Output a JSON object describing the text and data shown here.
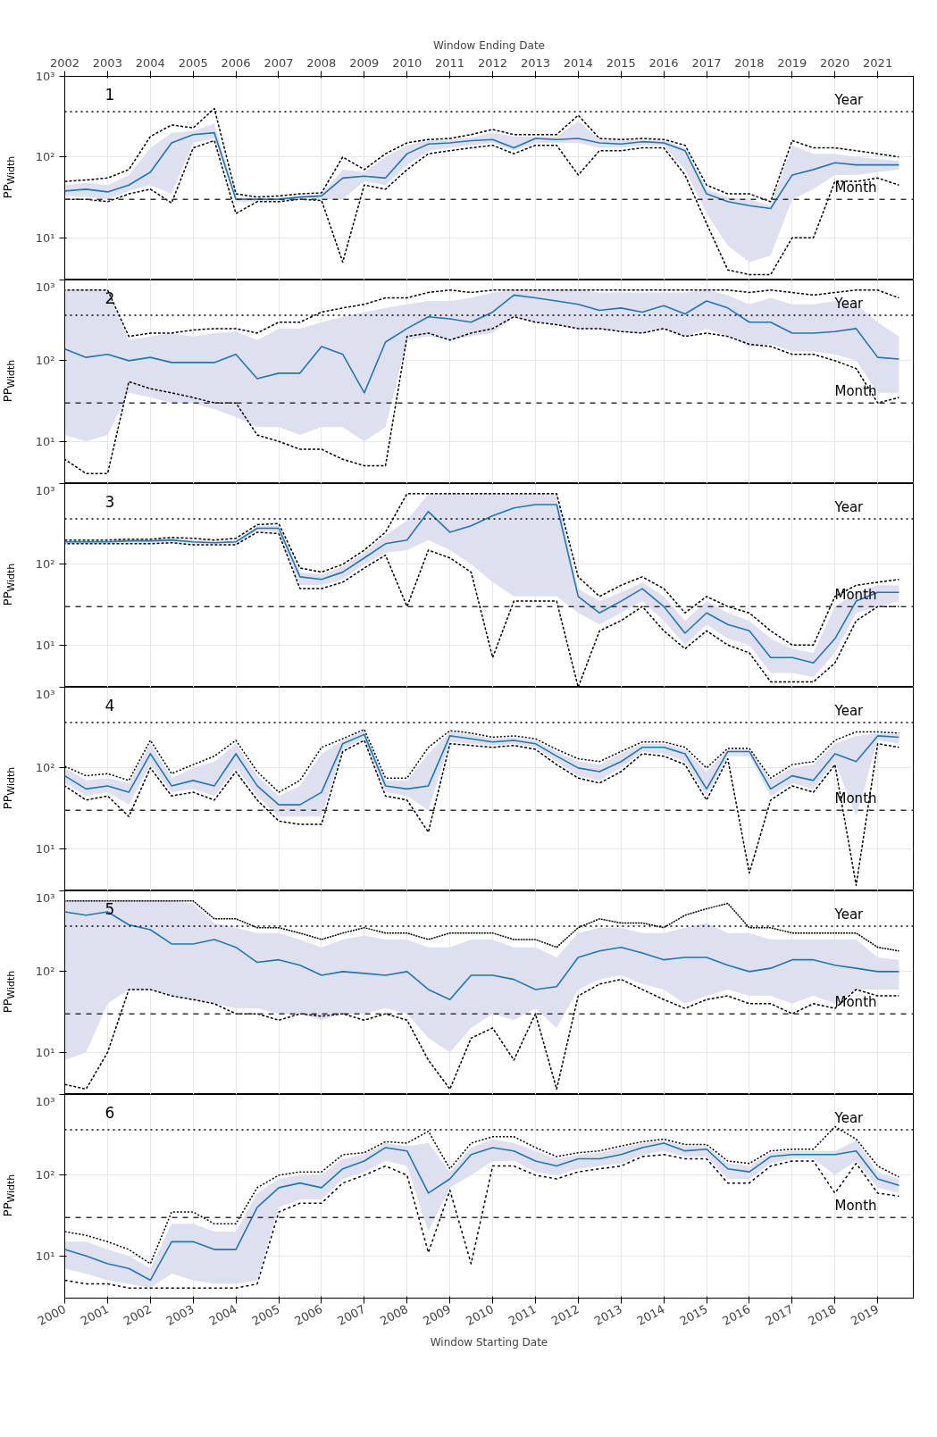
{
  "chart_data": [
    {
      "type": "line",
      "annotations": [
        "1"
      ],
      "x2label": "Window Ending Date",
      "ylabel": "PP$_{Width}$",
      "log": true,
      "grid": true,
      "tick_labels": "y",
      "ylim": [
        3,
        1000
      ],
      "yticks": [
        {
          "value": 10,
          "label": "10¹"
        },
        {
          "value": 100,
          "label": "10²"
        },
        {
          "value": 1000,
          "label": "10³"
        }
      ],
      "xlim": [
        "2000-01-01",
        "2019-11-01"
      ],
      "xticks": [
        "2000",
        "2001",
        "2002",
        "2003",
        "2004",
        "2005",
        "2006",
        "2007",
        "2008",
        "2009",
        "2010",
        "2011",
        "2012",
        "2013",
        "2014",
        "2015",
        "2016",
        "2017",
        "2018",
        "2019"
      ],
      "x2lim": [
        "2002-01-01",
        "2021-11-01"
      ],
      "x2ticks": [
        "2002",
        "2003",
        "2004",
        "2005",
        "2006",
        "2007",
        "2008",
        "2009",
        "2010",
        "2011",
        "2012",
        "2013",
        "2014",
        "2015",
        "2016",
        "2017",
        "2018",
        "2019",
        "2020",
        "2021"
      ],
      "ref_lines": [
        {
          "axis": "y",
          "value": 365,
          "label": "Year",
          "line_style": "dotted",
          "color": "#000000"
        },
        {
          "axis": "y",
          "value": 30,
          "label": "Month",
          "line_style": "dashed",
          "color": "#333333"
        }
      ],
      "x": [
        "2000-01",
        "2000-07",
        "2001-01",
        "2001-07",
        "2002-01",
        "2002-07",
        "2003-01",
        "2003-07",
        "2004-01",
        "2004-07",
        "2005-01",
        "2005-07",
        "2006-01",
        "2006-07",
        "2007-01",
        "2007-07",
        "2008-01",
        "2008-07",
        "2009-01",
        "2009-07",
        "2010-01",
        "2010-07",
        "2011-01",
        "2011-07",
        "2012-01",
        "2012-07",
        "2013-01",
        "2013-07",
        "2014-01",
        "2014-07",
        "2015-01",
        "2015-07",
        "2016-01",
        "2016-07",
        "2017-01",
        "2017-07",
        "2018-01",
        "2018-07",
        "2019-01",
        "2019-07"
      ],
      "series": [
        {
          "color": "#1f77b4",
          "line_style": "solid",
          "values": [
            38,
            40,
            37,
            45,
            65,
            150,
            190,
            200,
            30,
            30,
            30,
            32,
            33,
            55,
            58,
            55,
            110,
            145,
            150,
            160,
            165,
            130,
            170,
            165,
            170,
            150,
            145,
            155,
            150,
            120,
            35,
            28,
            25,
            23,
            60,
            70,
            85,
            80,
            80,
            80
          ],
          "lower": [
            33,
            32,
            30,
            38,
            45,
            35,
            150,
            170,
            28,
            28,
            29,
            30,
            30,
            30,
            50,
            45,
            80,
            120,
            130,
            140,
            150,
            120,
            150,
            150,
            150,
            130,
            130,
            140,
            140,
            70,
            20,
            8,
            5,
            6,
            30,
            40,
            60,
            60,
            65,
            70
          ],
          "upper": [
            45,
            48,
            45,
            60,
            130,
            200,
            210,
            260,
            31,
            31,
            31,
            33,
            35,
            70,
            65,
            100,
            140,
            160,
            165,
            175,
            200,
            180,
            180,
            180,
            280,
            165,
            160,
            165,
            160,
            130,
            40,
            32,
            30,
            25,
            140,
            110,
            110,
            100,
            95,
            90
          ]
        },
        {
          "color": "#000000",
          "line_style": "dotted",
          "values": [
            50,
            52,
            55,
            70,
            180,
            250,
            230,
            400,
            35,
            32,
            33,
            35,
            36,
            100,
            70,
            110,
            150,
            165,
            170,
            190,
            220,
            190,
            190,
            190,
            330,
            170,
            165,
            170,
            165,
            140,
            45,
            35,
            35,
            28,
            160,
            130,
            130,
            120,
            110,
            100
          ]
        },
        {
          "color": "#000000",
          "line_style": "dotted",
          "values": [
            30,
            30,
            28,
            35,
            40,
            27,
            130,
            160,
            20,
            28,
            28,
            30,
            29,
            5,
            45,
            40,
            70,
            110,
            120,
            130,
            140,
            110,
            140,
            140,
            60,
            120,
            120,
            130,
            130,
            60,
            15,
            4,
            3.5,
            3.5,
            10,
            10,
            50,
            50,
            55,
            45
          ]
        }
      ]
    },
    {
      "type": "line",
      "annotations": [
        "2"
      ],
      "ylabel": "PP$_{Width}$",
      "log": true,
      "grid": true,
      "tick_labels": "y",
      "ylim": [
        3,
        1000
      ],
      "yticks": [
        {
          "value": 10,
          "label": "10¹"
        },
        {
          "value": 100,
          "label": "10²"
        },
        {
          "value": 1000,
          "label": "10³"
        }
      ],
      "xlim": [
        "2000-01-01",
        "2019-11-01"
      ],
      "xticks": [
        "2000",
        "2001",
        "2002",
        "2003",
        "2004",
        "2005",
        "2006",
        "2007",
        "2008",
        "2009",
        "2010",
        "2011",
        "2012",
        "2013",
        "2014",
        "2015",
        "2016",
        "2017",
        "2018",
        "2019"
      ],
      "ref_lines": [
        {
          "axis": "y",
          "value": 365,
          "label": "Year",
          "line_style": "dotted",
          "color": "#000000"
        },
        {
          "axis": "y",
          "value": 30,
          "label": "Month",
          "line_style": "dashed",
          "color": "#333333"
        }
      ],
      "x": [
        "2000-01",
        "2000-07",
        "2001-01",
        "2001-07",
        "2002-01",
        "2002-07",
        "2003-01",
        "2003-07",
        "2004-01",
        "2004-07",
        "2005-01",
        "2005-07",
        "2006-01",
        "2006-07",
        "2007-01",
        "2007-07",
        "2008-01",
        "2008-07",
        "2009-01",
        "2009-07",
        "2010-01",
        "2010-07",
        "2011-01",
        "2011-07",
        "2012-01",
        "2012-07",
        "2013-01",
        "2013-07",
        "2014-01",
        "2014-07",
        "2015-01",
        "2015-07",
        "2016-01",
        "2016-07",
        "2017-01",
        "2017-07",
        "2018-01",
        "2018-07",
        "2019-01",
        "2019-07"
      ],
      "series": [
        {
          "color": "#1f77b4",
          "line_style": "solid",
          "values": [
            140,
            110,
            120,
            100,
            110,
            95,
            95,
            95,
            120,
            60,
            70,
            70,
            150,
            120,
            40,
            170,
            250,
            350,
            330,
            300,
            400,
            650,
            600,
            550,
            500,
            420,
            450,
            400,
            480,
            380,
            550,
            450,
            300,
            300,
            220,
            220,
            230,
            250,
            110,
            105
          ],
          "lower": [
            12,
            10,
            12,
            40,
            35,
            30,
            30,
            25,
            20,
            15,
            15,
            12,
            15,
            15,
            10,
            15,
            180,
            200,
            180,
            200,
            220,
            350,
            300,
            280,
            250,
            250,
            230,
            220,
            250,
            200,
            250,
            200,
            150,
            160,
            130,
            130,
            120,
            100,
            40,
            40
          ],
          "upper": [
            750,
            750,
            750,
            180,
            200,
            220,
            200,
            220,
            230,
            180,
            250,
            250,
            300,
            350,
            400,
            450,
            500,
            550,
            550,
            600,
            700,
            750,
            750,
            750,
            750,
            700,
            700,
            700,
            700,
            700,
            750,
            650,
            500,
            600,
            500,
            500,
            550,
            500,
            300,
            200
          ]
        },
        {
          "color": "#000000",
          "line_style": "dotted",
          "values": [
            750,
            750,
            750,
            200,
            220,
            220,
            240,
            250,
            250,
            220,
            300,
            300,
            400,
            450,
            500,
            600,
            600,
            700,
            750,
            700,
            750,
            750,
            750,
            750,
            750,
            750,
            750,
            750,
            750,
            750,
            750,
            750,
            700,
            750,
            700,
            650,
            700,
            750,
            750,
            600
          ]
        },
        {
          "color": "#000000",
          "line_style": "dotted",
          "values": [
            6,
            4,
            4,
            55,
            45,
            40,
            35,
            30,
            30,
            12,
            10,
            8,
            8,
            6,
            5,
            5,
            200,
            220,
            180,
            220,
            250,
            350,
            300,
            280,
            250,
            250,
            230,
            220,
            250,
            200,
            220,
            200,
            160,
            150,
            120,
            120,
            100,
            80,
            30,
            35
          ]
        }
      ]
    },
    {
      "type": "line",
      "annotations": [
        "3"
      ],
      "ylabel": "PP$_{Width}$",
      "log": true,
      "grid": true,
      "tick_labels": "y",
      "ylim": [
        3,
        1000
      ],
      "yticks": [
        {
          "value": 10,
          "label": "10¹"
        },
        {
          "value": 100,
          "label": "10²"
        },
        {
          "value": 1000,
          "label": "10³"
        }
      ],
      "xlim": [
        "2000-01-01",
        "2019-11-01"
      ],
      "xticks": [
        "2000",
        "2001",
        "2002",
        "2003",
        "2004",
        "2005",
        "2006",
        "2007",
        "2008",
        "2009",
        "2010",
        "2011",
        "2012",
        "2013",
        "2014",
        "2015",
        "2016",
        "2017",
        "2018",
        "2019"
      ],
      "ref_lines": [
        {
          "axis": "y",
          "value": 365,
          "label": "Year",
          "line_style": "dotted",
          "color": "#000000"
        },
        {
          "axis": "y",
          "value": 30,
          "label": "Month",
          "line_style": "dashed",
          "color": "#333333"
        }
      ],
      "x": [
        "2000-01",
        "2000-07",
        "2001-01",
        "2001-07",
        "2002-01",
        "2002-07",
        "2003-01",
        "2003-07",
        "2004-01",
        "2004-07",
        "2005-01",
        "2005-07",
        "2006-01",
        "2006-07",
        "2007-01",
        "2007-07",
        "2008-01",
        "2008-07",
        "2009-01",
        "2009-07",
        "2010-01",
        "2010-07",
        "2011-01",
        "2011-07",
        "2012-01",
        "2012-07",
        "2013-01",
        "2013-07",
        "2014-01",
        "2014-07",
        "2015-01",
        "2015-07",
        "2016-01",
        "2016-07",
        "2017-01",
        "2017-07",
        "2018-01",
        "2018-07",
        "2019-01",
        "2019-07"
      ],
      "series": [
        {
          "color": "#1f77b4",
          "line_style": "solid",
          "values": [
            190,
            190,
            190,
            195,
            195,
            200,
            190,
            185,
            190,
            280,
            280,
            70,
            65,
            80,
            120,
            180,
            200,
            450,
            250,
            300,
            400,
            500,
            550,
            550,
            40,
            25,
            35,
            50,
            30,
            14,
            25,
            18,
            15,
            7,
            7,
            6,
            12,
            35,
            45,
            45
          ],
          "lower": [
            185,
            185,
            185,
            185,
            185,
            190,
            180,
            180,
            180,
            260,
            250,
            55,
            55,
            65,
            100,
            140,
            150,
            200,
            150,
            100,
            60,
            40,
            40,
            40,
            25,
            18,
            25,
            35,
            20,
            10,
            18,
            12,
            10,
            4.5,
            4.5,
            4,
            8,
            25,
            30,
            35
          ],
          "upper": [
            195,
            195,
            195,
            200,
            200,
            210,
            200,
            195,
            200,
            300,
            300,
            80,
            75,
            95,
            140,
            230,
            350,
            750,
            750,
            750,
            750,
            750,
            750,
            750,
            50,
            35,
            45,
            60,
            40,
            20,
            35,
            25,
            20,
            12,
            9,
            8,
            30,
            45,
            55,
            55
          ]
        },
        {
          "color": "#000000",
          "line_style": "dotted",
          "values": [
            200,
            200,
            200,
            205,
            205,
            215,
            210,
            200,
            210,
            310,
            320,
            90,
            80,
            100,
            150,
            250,
            750,
            750,
            750,
            750,
            750,
            750,
            750,
            750,
            70,
            40,
            55,
            70,
            50,
            25,
            40,
            30,
            25,
            15,
            10,
            10,
            40,
            55,
            60,
            65
          ]
        },
        {
          "color": "#000000",
          "line_style": "dotted",
          "values": [
            180,
            180,
            180,
            180,
            180,
            185,
            175,
            175,
            175,
            250,
            240,
            50,
            50,
            60,
            90,
            130,
            30,
            150,
            120,
            80,
            7,
            35,
            35,
            35,
            3,
            15,
            20,
            30,
            15,
            9,
            15,
            10,
            8,
            3.5,
            3.5,
            3.5,
            6,
            20,
            30,
            30
          ]
        }
      ]
    },
    {
      "type": "line",
      "annotations": [
        "4"
      ],
      "ylabel": "PP$_{Width}$",
      "log": true,
      "grid": true,
      "tick_labels": "y",
      "ylim": [
        3,
        1000
      ],
      "yticks": [
        {
          "value": 10,
          "label": "10¹"
        },
        {
          "value": 100,
          "label": "10²"
        },
        {
          "value": 1000,
          "label": "10³"
        }
      ],
      "xlim": [
        "2000-01-01",
        "2019-11-01"
      ],
      "xticks": [
        "2000",
        "2001",
        "2002",
        "2003",
        "2004",
        "2005",
        "2006",
        "2007",
        "2008",
        "2009",
        "2010",
        "2011",
        "2012",
        "2013",
        "2014",
        "2015",
        "2016",
        "2017",
        "2018",
        "2019"
      ],
      "ref_lines": [
        {
          "axis": "y",
          "value": 365,
          "label": "Year",
          "line_style": "dotted",
          "color": "#000000"
        },
        {
          "axis": "y",
          "value": 30,
          "label": "Month",
          "line_style": "dashed",
          "color": "#333333"
        }
      ],
      "x": [
        "2000-01",
        "2000-07",
        "2001-01",
        "2001-07",
        "2002-01",
        "2002-07",
        "2003-01",
        "2003-07",
        "2004-01",
        "2004-07",
        "2005-01",
        "2005-07",
        "2006-01",
        "2006-07",
        "2007-01",
        "2007-07",
        "2008-01",
        "2008-07",
        "2009-01",
        "2009-07",
        "2010-01",
        "2010-07",
        "2011-01",
        "2011-07",
        "2012-01",
        "2012-07",
        "2013-01",
        "2013-07",
        "2014-01",
        "2014-07",
        "2015-01",
        "2015-07",
        "2016-01",
        "2016-07",
        "2017-01",
        "2017-07",
        "2018-01",
        "2018-07",
        "2019-01",
        "2019-07"
      ],
      "series": [
        {
          "color": "#1f77b4",
          "line_style": "solid",
          "values": [
            80,
            55,
            60,
            50,
            150,
            60,
            70,
            60,
            150,
            60,
            35,
            35,
            50,
            200,
            260,
            60,
            55,
            60,
            250,
            230,
            210,
            220,
            200,
            140,
            100,
            90,
            120,
            180,
            180,
            150,
            55,
            160,
            160,
            55,
            80,
            70,
            150,
            120,
            250,
            240
          ],
          "lower": [
            65,
            45,
            50,
            35,
            110,
            50,
            55,
            45,
            100,
            45,
            25,
            25,
            25,
            170,
            230,
            50,
            45,
            30,
            210,
            200,
            190,
            200,
            180,
            120,
            80,
            70,
            100,
            160,
            150,
            120,
            45,
            140,
            140,
            45,
            65,
            55,
            120,
            25,
            220,
            200
          ],
          "upper": [
            100,
            70,
            75,
            65,
            200,
            75,
            100,
            120,
            200,
            80,
            45,
            60,
            150,
            220,
            290,
            70,
            70,
            150,
            280,
            260,
            230,
            240,
            220,
            160,
            120,
            110,
            150,
            200,
            200,
            170,
            90,
            170,
            170,
            70,
            100,
            110,
            200,
            250,
            270,
            260
          ]
        },
        {
          "color": "#000000",
          "line_style": "dotted",
          "values": [
            105,
            80,
            85,
            70,
            220,
            85,
            110,
            140,
            220,
            90,
            50,
            70,
            180,
            230,
            300,
            75,
            75,
            180,
            290,
            270,
            240,
            250,
            230,
            170,
            130,
            120,
            160,
            210,
            210,
            180,
            100,
            175,
            175,
            75,
            110,
            120,
            220,
            280,
            280,
            270
          ]
        },
        {
          "color": "#000000",
          "line_style": "dotted",
          "values": [
            60,
            40,
            45,
            25,
            100,
            45,
            50,
            40,
            90,
            40,
            22,
            20,
            20,
            160,
            220,
            45,
            40,
            16,
            200,
            190,
            180,
            190,
            170,
            110,
            75,
            65,
            90,
            150,
            140,
            110,
            40,
            130,
            5,
            40,
            60,
            50,
            110,
            3.5,
            200,
            180
          ]
        }
      ]
    },
    {
      "type": "line",
      "annotations": [
        "5"
      ],
      "ylabel": "PP$_{Width}$",
      "log": true,
      "grid": true,
      "tick_labels": "y",
      "ylim": [
        3,
        1000
      ],
      "yticks": [
        {
          "value": 10,
          "label": "10¹"
        },
        {
          "value": 100,
          "label": "10²"
        },
        {
          "value": 1000,
          "label": "10³"
        }
      ],
      "xlim": [
        "2000-01-01",
        "2019-11-01"
      ],
      "xticks": [
        "2000",
        "2001",
        "2002",
        "2003",
        "2004",
        "2005",
        "2006",
        "2007",
        "2008",
        "2009",
        "2010",
        "2011",
        "2012",
        "2013",
        "2014",
        "2015",
        "2016",
        "2017",
        "2018",
        "2019"
      ],
      "ref_lines": [
        {
          "axis": "y",
          "value": 365,
          "label": "Year",
          "line_style": "dotted",
          "color": "#000000"
        },
        {
          "axis": "y",
          "value": 30,
          "label": "Month",
          "line_style": "dashed",
          "color": "#333333"
        }
      ],
      "x": [
        "2000-01",
        "2000-07",
        "2001-01",
        "2001-07",
        "2002-01",
        "2002-07",
        "2003-01",
        "2003-07",
        "2004-01",
        "2004-07",
        "2005-01",
        "2005-07",
        "2006-01",
        "2006-07",
        "2007-01",
        "2007-07",
        "2008-01",
        "2008-07",
        "2009-01",
        "2009-07",
        "2010-01",
        "2010-07",
        "2011-01",
        "2011-07",
        "2012-01",
        "2012-07",
        "2013-01",
        "2013-07",
        "2014-01",
        "2014-07",
        "2015-01",
        "2015-07",
        "2016-01",
        "2016-07",
        "2017-01",
        "2017-07",
        "2018-01",
        "2018-07",
        "2019-01",
        "2019-07"
      ],
      "series": [
        {
          "color": "#1f77b4",
          "line_style": "solid",
          "values": [
            550,
            500,
            550,
            380,
            330,
            220,
            220,
            250,
            200,
            130,
            140,
            120,
            90,
            100,
            95,
            90,
            100,
            60,
            45,
            90,
            90,
            80,
            60,
            65,
            150,
            180,
            200,
            170,
            140,
            150,
            150,
            120,
            100,
            110,
            140,
            140,
            120,
            110,
            100,
            100
          ],
          "lower": [
            8,
            10,
            40,
            60,
            60,
            50,
            45,
            40,
            35,
            35,
            30,
            30,
            25,
            30,
            30,
            35,
            30,
            15,
            10,
            20,
            30,
            25,
            35,
            20,
            60,
            80,
            90,
            70,
            60,
            40,
            50,
            60,
            50,
            50,
            40,
            50,
            40,
            60,
            60,
            60
          ],
          "upper": [
            750,
            750,
            750,
            750,
            750,
            750,
            700,
            400,
            350,
            300,
            300,
            250,
            200,
            250,
            280,
            250,
            250,
            200,
            200,
            250,
            250,
            200,
            200,
            150,
            300,
            350,
            350,
            300,
            300,
            350,
            400,
            300,
            300,
            250,
            250,
            250,
            250,
            250,
            150,
            140
          ]
        },
        {
          "color": "#000000",
          "line_style": "dotted",
          "values": [
            750,
            750,
            750,
            750,
            750,
            750,
            750,
            450,
            450,
            350,
            350,
            300,
            250,
            300,
            350,
            300,
            300,
            250,
            300,
            300,
            300,
            250,
            250,
            200,
            350,
            450,
            400,
            400,
            350,
            500,
            600,
            700,
            350,
            350,
            300,
            300,
            300,
            300,
            200,
            180
          ]
        },
        {
          "color": "#000000",
          "line_style": "dotted",
          "values": [
            4,
            3.5,
            10,
            60,
            60,
            50,
            45,
            40,
            30,
            30,
            25,
            30,
            28,
            30,
            25,
            30,
            25,
            8,
            3.5,
            15,
            20,
            8,
            30,
            3.5,
            50,
            70,
            80,
            60,
            45,
            35,
            45,
            50,
            40,
            40,
            30,
            40,
            35,
            60,
            50,
            50
          ]
        }
      ]
    },
    {
      "type": "line",
      "annotations": [
        "6"
      ],
      "xlabel": "Window Starting Date",
      "ylabel": "PP$_{Width}$",
      "log": true,
      "grid": true,
      "ylim": [
        3,
        1000
      ],
      "yticks": [
        {
          "value": 10,
          "label": "10¹"
        },
        {
          "value": 100,
          "label": "10²"
        },
        {
          "value": 1000,
          "label": "10³"
        }
      ],
      "xlim": [
        "2000-01-01",
        "2019-11-01"
      ],
      "xticks": [
        "2000",
        "2001",
        "2002",
        "2003",
        "2004",
        "2005",
        "2006",
        "2007",
        "2008",
        "2009",
        "2010",
        "2011",
        "2012",
        "2013",
        "2014",
        "2015",
        "2016",
        "2017",
        "2018",
        "2019"
      ],
      "ref_lines": [
        {
          "axis": "y",
          "value": 365,
          "label": "Year",
          "line_style": "dotted",
          "color": "#000000"
        },
        {
          "axis": "y",
          "value": 30,
          "label": "Month",
          "line_style": "dashed",
          "color": "#333333"
        }
      ],
      "x": [
        "2000-01",
        "2000-07",
        "2001-01",
        "2001-07",
        "2002-01",
        "2002-07",
        "2003-01",
        "2003-07",
        "2004-01",
        "2004-07",
        "2005-01",
        "2005-07",
        "2006-01",
        "2006-07",
        "2007-01",
        "2007-07",
        "2008-01",
        "2008-07",
        "2009-01",
        "2009-07",
        "2010-01",
        "2010-07",
        "2011-01",
        "2011-07",
        "2012-01",
        "2012-07",
        "2013-01",
        "2013-07",
        "2014-01",
        "2014-07",
        "2015-01",
        "2015-07",
        "2016-01",
        "2016-07",
        "2017-01",
        "2017-07",
        "2018-01",
        "2018-07",
        "2019-01",
        "2019-07"
      ],
      "series": [
        {
          "color": "#1f77b4",
          "line_style": "solid",
          "values": [
            12,
            10,
            8,
            7,
            5,
            15,
            15,
            12,
            12,
            40,
            70,
            80,
            70,
            120,
            150,
            220,
            200,
            60,
            90,
            180,
            220,
            200,
            150,
            130,
            160,
            160,
            180,
            220,
            250,
            200,
            210,
            120,
            110,
            170,
            180,
            180,
            180,
            200,
            90,
            75
          ],
          "lower": [
            7,
            6,
            5,
            4.5,
            4,
            6,
            5,
            4.5,
            4.5,
            5,
            40,
            50,
            50,
            90,
            110,
            150,
            130,
            20,
            70,
            100,
            150,
            150,
            110,
            100,
            120,
            130,
            140,
            180,
            200,
            170,
            170,
            90,
            90,
            140,
            160,
            160,
            100,
            150,
            70,
            60
          ],
          "upper": [
            15,
            15,
            12,
            10,
            7,
            25,
            25,
            20,
            20,
            60,
            90,
            100,
            100,
            160,
            180,
            250,
            230,
            250,
            110,
            220,
            280,
            250,
            200,
            160,
            180,
            190,
            220,
            250,
            270,
            230,
            230,
            140,
            130,
            190,
            200,
            200,
            200,
            270,
            110,
            90
          ]
        },
        {
          "color": "#000000",
          "line_style": "dotted",
          "values": [
            20,
            18,
            15,
            12,
            8,
            35,
            35,
            25,
            25,
            70,
            100,
            110,
            110,
            180,
            190,
            260,
            250,
            350,
            120,
            250,
            300,
            300,
            220,
            170,
            190,
            200,
            230,
            260,
            280,
            240,
            240,
            150,
            140,
            200,
            210,
            210,
            400,
            280,
            130,
            95
          ]
        },
        {
          "color": "#000000",
          "line_style": "dotted",
          "values": [
            5,
            4.5,
            4.5,
            4,
            4,
            4,
            4,
            4,
            4,
            4.5,
            35,
            45,
            45,
            80,
            100,
            130,
            100,
            11,
            65,
            8,
            130,
            130,
            100,
            90,
            110,
            120,
            130,
            170,
            180,
            160,
            160,
            80,
            80,
            130,
            150,
            150,
            60,
            140,
            60,
            55
          ]
        }
      ]
    }
  ]
}
